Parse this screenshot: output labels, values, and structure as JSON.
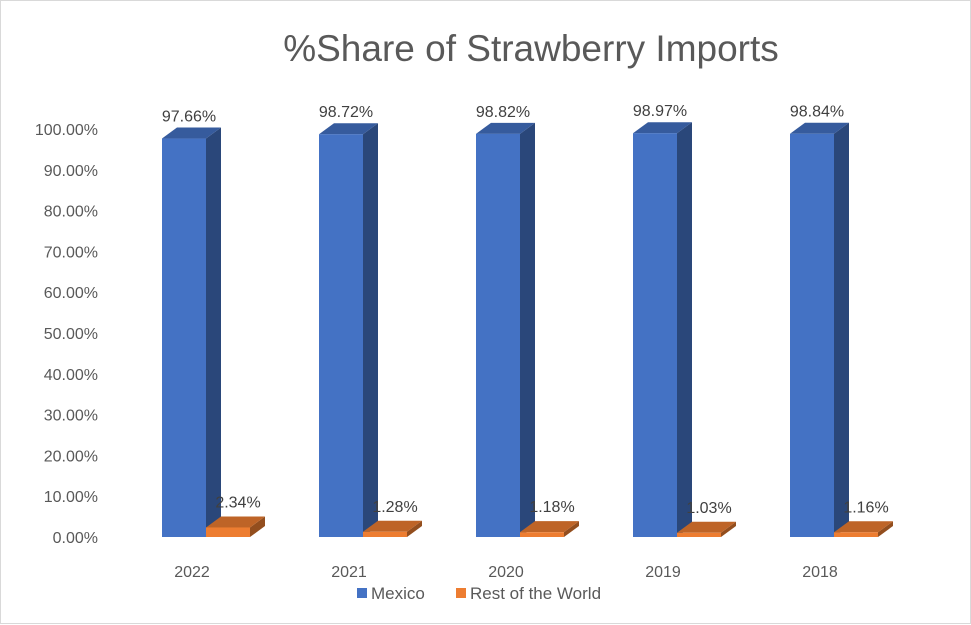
{
  "chart_data": {
    "type": "bar",
    "title": "%Share of Strawberry Imports",
    "xlabel": "",
    "ylabel": "",
    "categories": [
      "2022",
      "2021",
      "2020",
      "2019",
      "2018"
    ],
    "series": [
      {
        "name": "Mexico",
        "values": [
          97.66,
          98.72,
          98.82,
          98.97,
          98.84
        ],
        "labels": [
          "97.66%",
          "98.72%",
          "98.82%",
          "98.97%",
          "98.84%"
        ],
        "color": "#4472c4"
      },
      {
        "name": "Rest of the World",
        "values": [
          2.34,
          1.28,
          1.18,
          1.03,
          1.16
        ],
        "labels": [
          "2.34%",
          "1.28%",
          "1.18%",
          "1.03%",
          "1.16%"
        ],
        "color": "#ed7d31"
      }
    ],
    "ylim": [
      0,
      100
    ],
    "yticks": [
      "0.00%",
      "10.00%",
      "20.00%",
      "30.00%",
      "40.00%",
      "50.00%",
      "60.00%",
      "70.00%",
      "80.00%",
      "90.00%",
      "100.00%"
    ],
    "grid": false,
    "legend": "bottom",
    "style": "3d-column"
  }
}
